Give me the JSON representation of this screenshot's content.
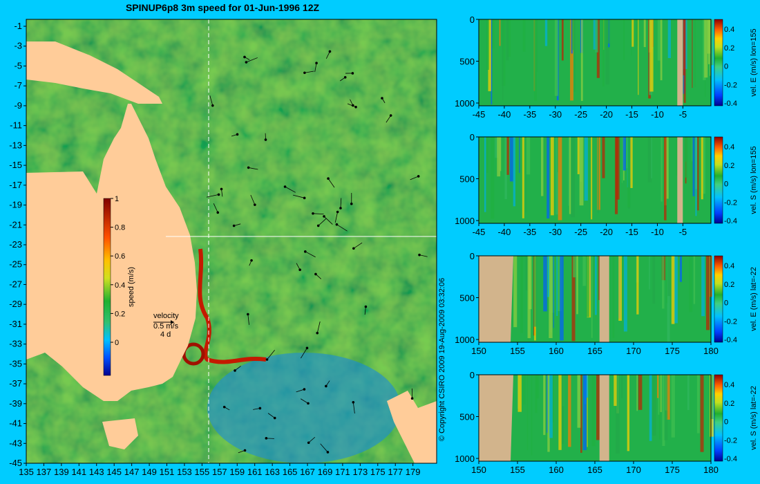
{
  "title": "SPINUP6p8 3m speed for 01-Jun-1996 12Z",
  "copyright": "© Copyright CSIRO 2009  19-Aug-2009 03:32:06",
  "colors": {
    "background": "#00ccff",
    "land": "#ffcc99",
    "profile_land": "#d2b48c",
    "ocean_base": "#22b04a"
  },
  "map": {
    "lon_ticks": [
      "135",
      "137",
      "139",
      "141",
      "143",
      "145",
      "147",
      "149",
      "151",
      "153",
      "155",
      "157",
      "159",
      "161",
      "163",
      "165",
      "167",
      "169",
      "171",
      "173",
      "175",
      "177",
      "179"
    ],
    "lat_ticks": [
      "-1",
      "-3",
      "-5",
      "-7",
      "-9",
      "-11",
      "-13",
      "-15",
      "-17",
      "-19",
      "-21",
      "-23",
      "-25",
      "-27",
      "-29",
      "-31",
      "-33",
      "-35",
      "-37",
      "-39",
      "-41",
      "-43",
      "-45"
    ],
    "section_lon": 155,
    "section_lat": -22,
    "colorbar": {
      "label": "speed (m/s)",
      "ticks": [
        "1",
        "0.8",
        "0.6",
        "0.4",
        "0.2",
        "0"
      ]
    },
    "velocity_key": {
      "label": "velocity",
      "speed": "0.5 m/s",
      "duration": "4 d"
    }
  },
  "panels": [
    {
      "label": "vel. E (m/s) lon=155",
      "x_ticks": [
        "-45",
        "-40",
        "-35",
        "-30",
        "-25",
        "-20",
        "-15",
        "-10",
        "-5"
      ],
      "y_ticks": [
        "0",
        "500",
        "1000"
      ],
      "cb_ticks": [
        "0.4",
        "0.2",
        "0",
        "-0.2",
        "-0.4"
      ]
    },
    {
      "label": "vel. S (m/s) lon=155",
      "x_ticks": [
        "-45",
        "-40",
        "-35",
        "-30",
        "-25",
        "-20",
        "-15",
        "-10",
        "-5"
      ],
      "y_ticks": [
        "0",
        "500",
        "1000"
      ],
      "cb_ticks": [
        "0.4",
        "0.2",
        "0",
        "-0.2",
        "-0.4"
      ]
    },
    {
      "label": "vel. E (m/s) lat=-22",
      "x_ticks": [
        "150",
        "155",
        "160",
        "165",
        "170",
        "175",
        "180"
      ],
      "y_ticks": [
        "0",
        "500",
        "1000"
      ],
      "cb_ticks": [
        "0.4",
        "0.2",
        "0",
        "-0.2",
        "-0.4"
      ]
    },
    {
      "label": "vel. S (m/s) lat=-22",
      "x_ticks": [
        "150",
        "155",
        "160",
        "165",
        "170",
        "175",
        "180"
      ],
      "y_ticks": [
        "0",
        "500",
        "1000"
      ],
      "cb_ticks": [
        "0.4",
        "0.2",
        "0",
        "-0.2",
        "-0.4"
      ]
    }
  ]
}
